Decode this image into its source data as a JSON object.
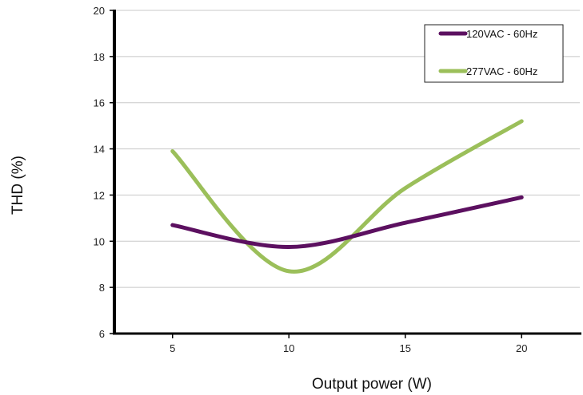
{
  "chart_data": {
    "type": "line",
    "title": "",
    "xlabel": "Output power (W)",
    "ylabel": "THD (%)",
    "x": [
      5,
      10,
      15,
      20
    ],
    "x_ticks": [
      "5",
      "10",
      "15",
      "20"
    ],
    "xlim": [
      2.5,
      22.5
    ],
    "y_ticks": [
      "6",
      "8",
      "10",
      "12",
      "14",
      "16",
      "18",
      "20"
    ],
    "ylim": [
      6,
      20
    ],
    "grid": true,
    "legend_position": "top-right",
    "series": [
      {
        "name": "120VAC - 60Hz",
        "values": [
          10.7,
          9.75,
          10.8,
          11.9
        ],
        "color": "#5c1060"
      },
      {
        "name": "277VAC - 60Hz",
        "values": [
          13.9,
          8.7,
          12.3,
          15.2
        ],
        "color": "#9bbf5a"
      }
    ]
  }
}
